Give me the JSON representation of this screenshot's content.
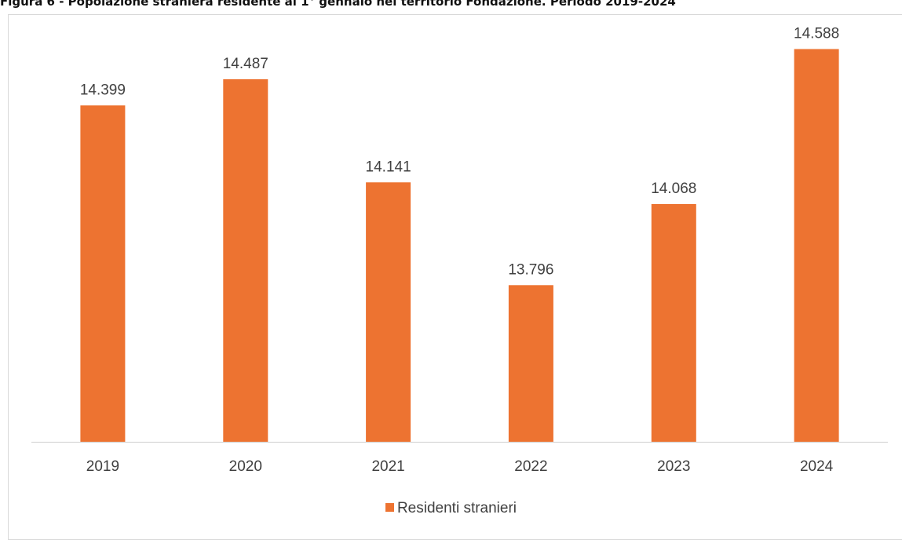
{
  "page": {
    "title": "Figura 6 - Popolazione straniera residente al 1° gennaio nel territorio Fondazione. Periodo 2019-2024"
  },
  "colors": {
    "bar": "#ED7331",
    "axis": "#d9d9d9",
    "label": "#404040",
    "border": "#d9d9d9"
  },
  "chart_data": {
    "type": "bar",
    "title": "",
    "xlabel": "",
    "ylabel": "",
    "categories": [
      "2019",
      "2020",
      "2021",
      "2022",
      "2023",
      "2024"
    ],
    "series": [
      {
        "name": "Residenti stranieri",
        "values": [
          14399,
          14487,
          14141,
          13796,
          14068,
          14588
        ],
        "labels": [
          "14.399",
          "14.487",
          "14.141",
          "13.796",
          "14.068",
          "14.588"
        ]
      }
    ],
    "ylim": [
      13270,
      14700
    ],
    "grid": false,
    "legend": "bottom"
  }
}
